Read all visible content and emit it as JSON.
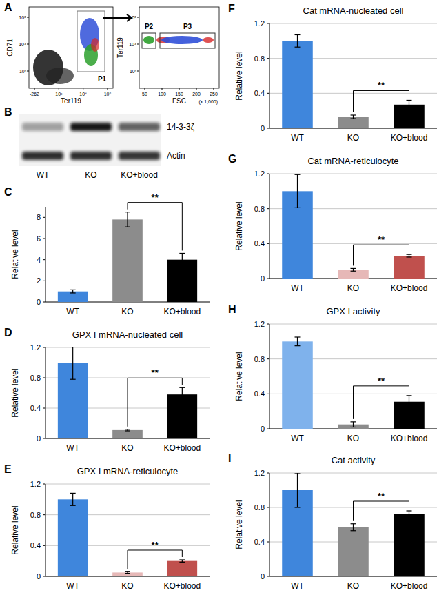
{
  "flow": {
    "panel": "A",
    "plots": [
      {
        "x_label": "Ter119",
        "y_label": "CD71",
        "xticks": [
          "-262",
          "10³",
          "10⁴",
          "10⁵"
        ],
        "yticks": [
          "10³",
          "10⁴",
          "10⁵"
        ],
        "gates": [
          "P1"
        ]
      },
      {
        "x_label": "FSC",
        "x_unit": "(x 1,000)",
        "y_label": "Ter119",
        "xticks": [
          "50",
          "100",
          "150",
          "200",
          "250"
        ],
        "yticks": [
          "10³",
          "10⁴",
          "10⁵"
        ],
        "gates": [
          "P2",
          "P3"
        ]
      }
    ]
  },
  "blot": {
    "panel": "B",
    "bands": [
      "14-3-3ζ",
      "Actin"
    ],
    "lanes": [
      "WT",
      "KO",
      "KO+blood"
    ]
  },
  "chart_data": [
    {
      "panel": "C",
      "type": "bar",
      "y_label": "Relative level",
      "categories": [
        "WT",
        "KO",
        "KO+blood"
      ],
      "values": [
        1.0,
        7.8,
        4.0
      ],
      "errors": [
        0.15,
        0.7,
        0.6
      ],
      "colors": [
        "#3f86dc",
        "#8c8c8c",
        "#000000"
      ],
      "ylim": [
        0,
        9
      ],
      "yticks": [
        0,
        2,
        4,
        6,
        8
      ],
      "grid": false,
      "annotation": "**"
    },
    {
      "panel": "D",
      "type": "bar",
      "title": "GPX I mRNA-nucleated cell",
      "y_label": "Relative level",
      "categories": [
        "WT",
        "KO",
        "KO+blood"
      ],
      "values": [
        1.0,
        0.11,
        0.58
      ],
      "errors": [
        0.22,
        0.01,
        0.09
      ],
      "colors": [
        "#3f86dc",
        "#8c8c8c",
        "#000000"
      ],
      "ylim": [
        0,
        1.2
      ],
      "yticks": [
        0,
        0.4,
        0.8,
        1.2
      ],
      "grid": true,
      "annotation": "**"
    },
    {
      "panel": "E",
      "type": "bar",
      "title": "GPX I mRNA-reticulocyte",
      "y_label": "Relative level",
      "categories": [
        "WT",
        "KO",
        "KO+blood"
      ],
      "values": [
        1.0,
        0.05,
        0.2
      ],
      "errors": [
        0.08,
        0.01,
        0.015
      ],
      "colors": [
        "#3f86dc",
        "#e6b8b7",
        "#c0504d"
      ],
      "ylim": [
        0,
        1.2
      ],
      "yticks": [
        0,
        0.4,
        0.8,
        1.2
      ],
      "grid": true,
      "annotation": "**"
    },
    {
      "panel": "F",
      "type": "bar",
      "title": "Cat mRNA-nucleated cell",
      "y_label": "Relative level",
      "categories": [
        "WT",
        "KO",
        "KO+blood"
      ],
      "values": [
        1.0,
        0.13,
        0.27
      ],
      "errors": [
        0.07,
        0.02,
        0.05
      ],
      "colors": [
        "#3f86dc",
        "#8c8c8c",
        "#000000"
      ],
      "ylim": [
        0,
        1.2
      ],
      "yticks": [
        0,
        0.4,
        0.8,
        1.2
      ],
      "grid": true,
      "annotation": "**"
    },
    {
      "panel": "G",
      "type": "bar",
      "title": "Cat mRNA-reticulocyte",
      "y_label": "Relative level",
      "categories": [
        "WT",
        "KO",
        "KO+blood"
      ],
      "values": [
        1.0,
        0.1,
        0.26
      ],
      "errors": [
        0.19,
        0.015,
        0.015
      ],
      "colors": [
        "#3f86dc",
        "#e6b8b7",
        "#c0504d"
      ],
      "ylim": [
        0,
        1.2
      ],
      "yticks": [
        0,
        0.4,
        0.8,
        1.2
      ],
      "grid": true,
      "annotation": "**"
    },
    {
      "panel": "H",
      "type": "bar",
      "title": "GPX I activity",
      "y_label": "Relative level",
      "categories": [
        "WT",
        "KO",
        "KO+blood"
      ],
      "values": [
        1.0,
        0.05,
        0.31
      ],
      "errors": [
        0.05,
        0.03,
        0.07
      ],
      "colors": [
        "#7fb2ec",
        "#8c8c8c",
        "#000000"
      ],
      "ylim": [
        0,
        1.2
      ],
      "yticks": [
        0,
        0.4,
        0.8,
        1.2
      ],
      "grid": true,
      "annotation": "**"
    },
    {
      "panel": "I",
      "type": "bar",
      "title": "Cat activity",
      "y_label": "Relative level",
      "categories": [
        "WT",
        "KO",
        "KO+blood"
      ],
      "values": [
        1.0,
        0.57,
        0.72
      ],
      "errors": [
        0.2,
        0.04,
        0.04
      ],
      "colors": [
        "#3f86dc",
        "#8c8c8c",
        "#000000"
      ],
      "ylim": [
        0,
        1.2
      ],
      "yticks": [
        0,
        0.4,
        0.8,
        1.2
      ],
      "grid": true,
      "annotation": "**"
    }
  ]
}
